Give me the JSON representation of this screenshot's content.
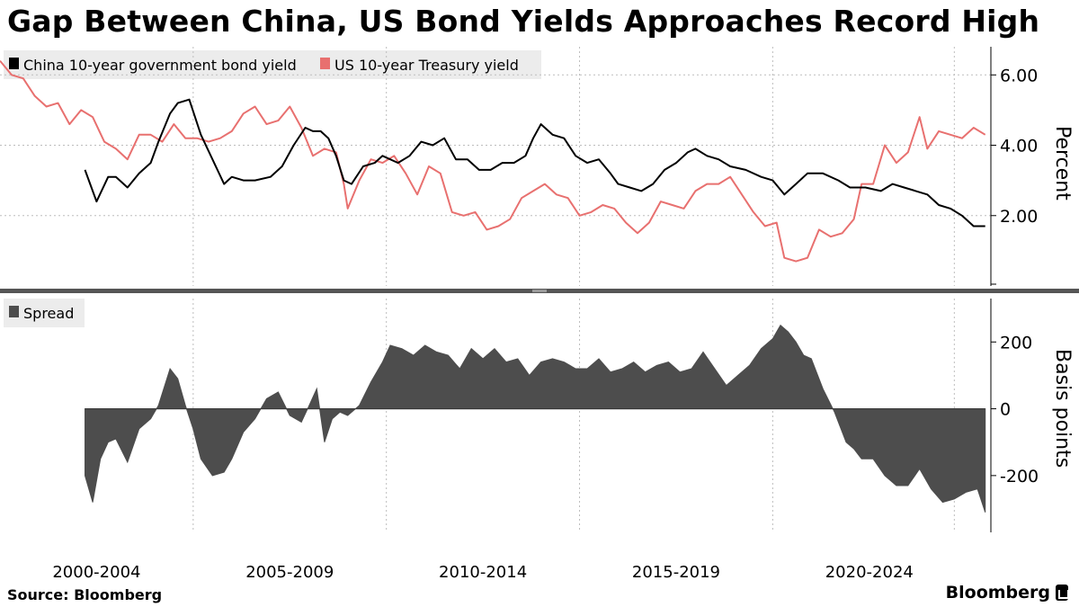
{
  "title": "Gap Between China, US Bond Yields Approaches Record High",
  "source": "Source: Bloomberg",
  "brand": "Bloomberg",
  "colors": {
    "china": "#000000",
    "us": "#e8706f",
    "spread": "#4d4d4d",
    "grid": "#bdbdbd"
  },
  "chart_data": [
    {
      "type": "line",
      "ylabel": "Percent",
      "ylim": [
        0,
        6.8
      ],
      "yticks": [
        "2.00",
        "4.00",
        "6.00"
      ],
      "yticks_values": [
        2,
        4,
        6
      ],
      "xlim": [
        2000.0,
        2025.6
      ],
      "legend": [
        "China 10-year government bond yield",
        "US 10-year Treasury yield"
      ],
      "legend_placement": "top-left",
      "series": [
        {
          "name": "China 10-year government bond yield",
          "x": [
            2002.2,
            2002.5,
            2002.8,
            2003.0,
            2003.3,
            2003.6,
            2003.9,
            2004.1,
            2004.4,
            2004.6,
            2004.9,
            2005.2,
            2005.5,
            2005.8,
            2006.0,
            2006.3,
            2006.6,
            2007.0,
            2007.3,
            2007.6,
            2007.9,
            2008.1,
            2008.3,
            2008.5,
            2008.7,
            2008.9,
            2009.1,
            2009.4,
            2009.7,
            2009.9,
            2010.3,
            2010.6,
            2010.9,
            2011.2,
            2011.5,
            2011.8,
            2012.1,
            2012.4,
            2012.7,
            2013.0,
            2013.3,
            2013.6,
            2013.8,
            2014.0,
            2014.3,
            2014.6,
            2014.9,
            2015.2,
            2015.5,
            2015.8,
            2016.0,
            2016.3,
            2016.6,
            2016.9,
            2017.2,
            2017.5,
            2017.8,
            2018.0,
            2018.3,
            2018.6,
            2018.9,
            2019.3,
            2019.7,
            2020.0,
            2020.3,
            2020.6,
            2020.9,
            2021.3,
            2021.7,
            2022.0,
            2022.4,
            2022.8,
            2023.1,
            2023.4,
            2023.7,
            2024.0,
            2024.3,
            2024.6,
            2024.9,
            2025.2,
            2025.5
          ],
          "values": [
            3.3,
            2.4,
            3.1,
            3.1,
            2.8,
            3.2,
            3.5,
            4.1,
            4.9,
            5.2,
            5.3,
            4.3,
            3.6,
            2.9,
            3.1,
            3.0,
            3.0,
            3.1,
            3.4,
            4.0,
            4.5,
            4.4,
            4.4,
            4.2,
            3.7,
            3.0,
            2.9,
            3.4,
            3.5,
            3.7,
            3.5,
            3.7,
            4.1,
            4.0,
            4.2,
            3.6,
            3.6,
            3.3,
            3.3,
            3.5,
            3.5,
            3.7,
            4.2,
            4.6,
            4.3,
            4.2,
            3.7,
            3.5,
            3.6,
            3.2,
            2.9,
            2.8,
            2.7,
            2.9,
            3.3,
            3.5,
            3.8,
            3.9,
            3.7,
            3.6,
            3.4,
            3.3,
            3.1,
            3.0,
            2.6,
            2.9,
            3.2,
            3.2,
            3.0,
            2.8,
            2.8,
            2.7,
            2.9,
            2.8,
            2.7,
            2.6,
            2.3,
            2.2,
            2.0,
            1.7,
            1.7
          ]
        },
        {
          "name": "US 10-year Treasury yield",
          "x": [
            2000.0,
            2000.3,
            2000.6,
            2000.9,
            2001.2,
            2001.5,
            2001.8,
            2002.1,
            2002.4,
            2002.7,
            2003.0,
            2003.3,
            2003.6,
            2003.9,
            2004.2,
            2004.5,
            2004.8,
            2005.1,
            2005.4,
            2005.7,
            2006.0,
            2006.3,
            2006.6,
            2006.9,
            2007.2,
            2007.5,
            2007.8,
            2008.1,
            2008.4,
            2008.7,
            2008.9,
            2009.0,
            2009.3,
            2009.6,
            2009.9,
            2010.2,
            2010.5,
            2010.8,
            2011.1,
            2011.4,
            2011.7,
            2012.0,
            2012.3,
            2012.6,
            2012.9,
            2013.2,
            2013.5,
            2013.8,
            2014.1,
            2014.4,
            2014.7,
            2015.0,
            2015.3,
            2015.6,
            2015.9,
            2016.2,
            2016.5,
            2016.8,
            2017.1,
            2017.4,
            2017.7,
            2018.0,
            2018.3,
            2018.6,
            2018.9,
            2019.2,
            2019.5,
            2019.8,
            2020.1,
            2020.3,
            2020.6,
            2020.9,
            2021.2,
            2021.5,
            2021.8,
            2022.1,
            2022.3,
            2022.6,
            2022.9,
            2023.2,
            2023.5,
            2023.8,
            2024.0,
            2024.3,
            2024.6,
            2024.9,
            2025.2,
            2025.5
          ],
          "values": [
            6.4,
            6.0,
            5.9,
            5.4,
            5.1,
            5.2,
            4.6,
            5.0,
            4.8,
            4.1,
            3.9,
            3.6,
            4.3,
            4.3,
            4.1,
            4.6,
            4.2,
            4.2,
            4.1,
            4.2,
            4.4,
            4.9,
            5.1,
            4.6,
            4.7,
            5.1,
            4.5,
            3.7,
            3.9,
            3.8,
            2.9,
            2.2,
            3.0,
            3.6,
            3.5,
            3.7,
            3.2,
            2.6,
            3.4,
            3.2,
            2.1,
            2.0,
            2.1,
            1.6,
            1.7,
            1.9,
            2.5,
            2.7,
            2.9,
            2.6,
            2.5,
            2.0,
            2.1,
            2.3,
            2.2,
            1.8,
            1.5,
            1.8,
            2.4,
            2.3,
            2.2,
            2.7,
            2.9,
            2.9,
            3.1,
            2.6,
            2.1,
            1.7,
            1.8,
            0.8,
            0.7,
            0.8,
            1.6,
            1.4,
            1.5,
            1.9,
            2.9,
            2.9,
            4.0,
            3.5,
            3.8,
            4.8,
            3.9,
            4.4,
            4.3,
            4.2,
            4.5,
            4.3
          ]
        }
      ]
    },
    {
      "type": "area",
      "ylabel": "Basis points",
      "ylim": [
        -370,
        330
      ],
      "yticks": [
        "-200",
        "0",
        "200"
      ],
      "yticks_values": [
        -200,
        0,
        200
      ],
      "xlim": [
        2000.0,
        2025.6
      ],
      "legend": [
        "Spread"
      ],
      "legend_placement": "top-left",
      "xticks": [
        "2000-2004",
        "2005-2009",
        "2010-2014",
        "2015-2019",
        "2020-2024"
      ],
      "series": [
        {
          "name": "Spread",
          "x": [
            2002.2,
            2002.4,
            2002.6,
            2002.8,
            2003.0,
            2003.3,
            2003.6,
            2003.9,
            2004.1,
            2004.4,
            2004.6,
            2004.8,
            2005.0,
            2005.2,
            2005.5,
            2005.8,
            2006.0,
            2006.3,
            2006.6,
            2006.9,
            2007.2,
            2007.5,
            2007.8,
            2008.0,
            2008.2,
            2008.4,
            2008.6,
            2008.8,
            2009.0,
            2009.3,
            2009.6,
            2009.9,
            2010.1,
            2010.4,
            2010.7,
            2011.0,
            2011.3,
            2011.6,
            2011.9,
            2012.2,
            2012.5,
            2012.8,
            2013.1,
            2013.4,
            2013.7,
            2014.0,
            2014.3,
            2014.6,
            2014.9,
            2015.2,
            2015.5,
            2015.8,
            2016.1,
            2016.4,
            2016.7,
            2017.0,
            2017.3,
            2017.6,
            2017.9,
            2018.2,
            2018.5,
            2018.8,
            2019.1,
            2019.4,
            2019.7,
            2020.0,
            2020.2,
            2020.4,
            2020.6,
            2020.8,
            2021.0,
            2021.3,
            2021.6,
            2021.9,
            2022.1,
            2022.3,
            2022.6,
            2022.9,
            2023.2,
            2023.5,
            2023.8,
            2024.1,
            2024.4,
            2024.7,
            2025.0,
            2025.3,
            2025.5
          ],
          "values": [
            -200,
            -280,
            -150,
            -100,
            -90,
            -160,
            -60,
            -30,
            10,
            120,
            90,
            10,
            -60,
            -150,
            -200,
            -190,
            -150,
            -70,
            -30,
            30,
            50,
            -20,
            -40,
            10,
            60,
            -100,
            -30,
            -10,
            -20,
            10,
            80,
            140,
            190,
            180,
            160,
            190,
            170,
            160,
            120,
            180,
            150,
            180,
            140,
            150,
            100,
            140,
            150,
            140,
            120,
            120,
            150,
            110,
            120,
            140,
            110,
            130,
            140,
            110,
            120,
            170,
            120,
            70,
            100,
            130,
            180,
            210,
            250,
            230,
            200,
            160,
            150,
            60,
            -10,
            -100,
            -120,
            -150,
            -150,
            -200,
            -230,
            -230,
            -180,
            -240,
            -280,
            -270,
            -250,
            -240,
            -310
          ]
        }
      ]
    }
  ]
}
